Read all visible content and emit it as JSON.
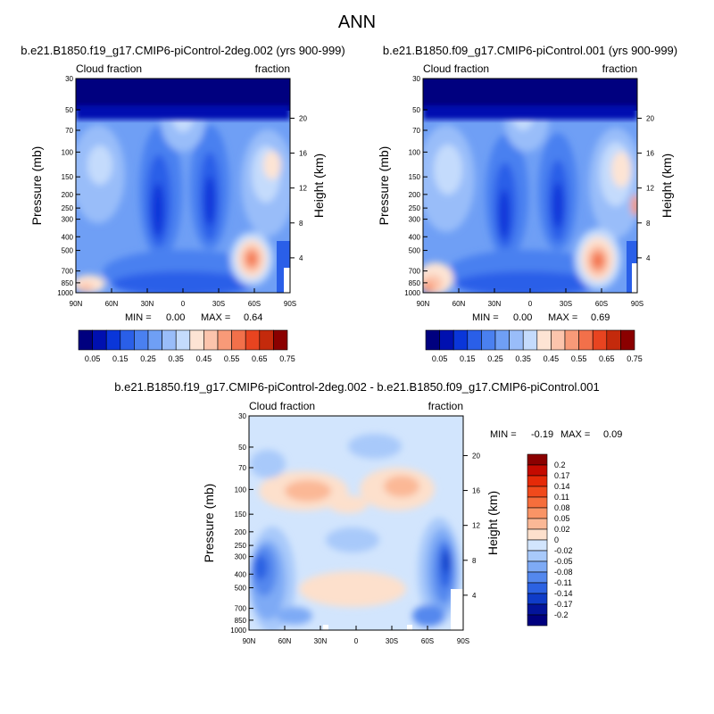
{
  "figure": {
    "title": "ANN"
  },
  "chart_data": [
    {
      "type": "heatmap",
      "id": "model1",
      "title": "b.e21.B1850.f19_g17.CMIP6-piControl-2deg.002 (yrs 900-999)",
      "left_string": "Cloud fraction",
      "right_string": "fraction",
      "ylabel": "Pressure (mb)",
      "ylabel_right": "Height (km)",
      "x_tick_labels": [
        "90N",
        "60N",
        "30N",
        "0",
        "30S",
        "60S",
        "90S"
      ],
      "x_ticks": [
        90,
        60,
        30,
        0,
        -30,
        -60,
        -90
      ],
      "y_tick_labels": [
        "30",
        "50",
        "70",
        "100",
        "150",
        "200",
        "250",
        "300",
        "400",
        "500",
        "700",
        "850",
        "1000"
      ],
      "y_ticks": [
        30,
        50,
        70,
        100,
        150,
        200,
        250,
        300,
        400,
        500,
        700,
        850,
        1000
      ],
      "height_tick_labels": [
        "20",
        "16",
        "12",
        "8",
        "4"
      ],
      "height_ticks": [
        20,
        16,
        12,
        8,
        4
      ],
      "ylim": [
        30,
        1000
      ],
      "xlim": [
        90,
        -90
      ],
      "y_scale": "log",
      "min_label": "MIN =",
      "min": "0.00",
      "max_label": "MAX =",
      "max": "0.64",
      "colorbar": {
        "orientation": "horizontal",
        "labels": [
          "0.05",
          "0.15",
          "0.25",
          "0.35",
          "0.45",
          "0.55",
          "0.65",
          "0.75"
        ],
        "colors": [
          "#00007f",
          "#0010b0",
          "#0a36d9",
          "#2a5fe8",
          "#4a80f0",
          "#6f9ff5",
          "#99bdf9",
          "#c4dbfc",
          "#fde4d4",
          "#fcc4ac",
          "#f89a78",
          "#f2704a",
          "#e84420",
          "#c42a0c",
          "#8b0000"
        ]
      }
    },
    {
      "type": "heatmap",
      "id": "model2",
      "title": "b.e21.B1850.f09_g17.CMIP6-piControl.001 (yrs 900-999)",
      "left_string": "Cloud fraction",
      "right_string": "fraction",
      "ylabel": "Pressure (mb)",
      "ylabel_right": "Height (km)",
      "x_tick_labels": [
        "90N",
        "60N",
        "30N",
        "0",
        "30S",
        "60S",
        "90S"
      ],
      "x_ticks": [
        90,
        60,
        30,
        0,
        -30,
        -60,
        -90
      ],
      "y_tick_labels": [
        "30",
        "50",
        "70",
        "100",
        "150",
        "200",
        "250",
        "300",
        "400",
        "500",
        "700",
        "850",
        "1000"
      ],
      "y_ticks": [
        30,
        50,
        70,
        100,
        150,
        200,
        250,
        300,
        400,
        500,
        700,
        850,
        1000
      ],
      "height_tick_labels": [
        "20",
        "16",
        "12",
        "8",
        "4"
      ],
      "height_ticks": [
        20,
        16,
        12,
        8,
        4
      ],
      "ylim": [
        30,
        1000
      ],
      "xlim": [
        90,
        -90
      ],
      "y_scale": "log",
      "min_label": "MIN =",
      "min": "0.00",
      "max_label": "MAX =",
      "max": "0.69",
      "colorbar": {
        "orientation": "horizontal",
        "labels": [
          "0.05",
          "0.15",
          "0.25",
          "0.35",
          "0.45",
          "0.55",
          "0.65",
          "0.75"
        ],
        "colors": [
          "#00007f",
          "#0010b0",
          "#0a36d9",
          "#2a5fe8",
          "#4a80f0",
          "#6f9ff5",
          "#99bdf9",
          "#c4dbfc",
          "#fde4d4",
          "#fcc4ac",
          "#f89a78",
          "#f2704a",
          "#e84420",
          "#c42a0c",
          "#8b0000"
        ]
      }
    },
    {
      "type": "heatmap",
      "id": "diff",
      "title": "b.e21.B1850.f19_g17.CMIP6-piControl-2deg.002 - b.e21.B1850.f09_g17.CMIP6-piControl.001",
      "left_string": "Cloud fraction",
      "right_string": "fraction",
      "ylabel": "Pressure (mb)",
      "ylabel_right": "Height (km)",
      "x_tick_labels": [
        "90N",
        "60N",
        "30N",
        "0",
        "30S",
        "60S",
        "90S"
      ],
      "x_ticks": [
        90,
        60,
        30,
        0,
        -30,
        -60,
        -90
      ],
      "y_tick_labels": [
        "30",
        "50",
        "70",
        "100",
        "150",
        "200",
        "250",
        "300",
        "400",
        "500",
        "700",
        "850",
        "1000"
      ],
      "y_ticks": [
        30,
        50,
        70,
        100,
        150,
        200,
        250,
        300,
        400,
        500,
        700,
        850,
        1000
      ],
      "height_tick_labels": [
        "20",
        "16",
        "12",
        "8",
        "4"
      ],
      "height_ticks": [
        20,
        16,
        12,
        8,
        4
      ],
      "ylim": [
        30,
        1000
      ],
      "xlim": [
        90,
        -90
      ],
      "y_scale": "log",
      "min_label": "MIN =",
      "min": "-0.19",
      "max_label": "MAX =",
      "max": "0.09",
      "colorbar": {
        "orientation": "vertical",
        "labels": [
          "0.2",
          "0.17",
          "0.14",
          "0.11",
          "0.08",
          "0.05",
          "0.02",
          "0",
          "-0.02",
          "-0.05",
          "-0.08",
          "-0.11",
          "-0.14",
          "-0.17",
          "-0.2"
        ],
        "colors": [
          "#8b0000",
          "#c40a00",
          "#e52a08",
          "#f04a1c",
          "#f66e3c",
          "#f99466",
          "#fbb896",
          "#fde0cc",
          "#d2e5fd",
          "#a8c9fa",
          "#7eaaf5",
          "#5488ee",
          "#2c62e2",
          "#0f3cc8",
          "#03149a",
          "#00007f"
        ]
      }
    }
  ]
}
